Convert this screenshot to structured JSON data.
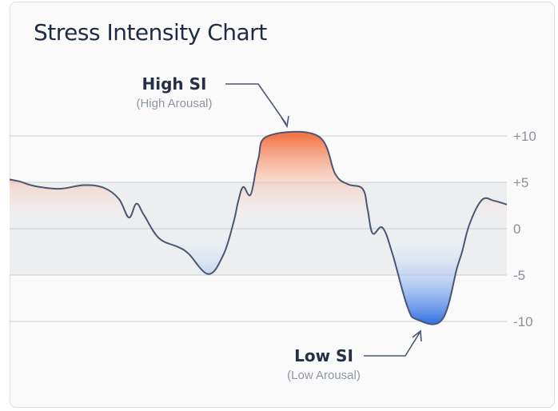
{
  "chart_data": {
    "type": "line",
    "title": "Stress Intensity Chart",
    "xlabel": "",
    "ylabel": "",
    "ylim": [
      -10,
      10
    ],
    "yticks": [
      "+10",
      "+5",
      "0",
      "-5",
      "-10"
    ],
    "normal_band": [
      -5,
      5
    ],
    "grid": true,
    "series": [
      {
        "values": [
          [
            0,
            5.3
          ],
          [
            0.02,
            5.1
          ],
          [
            0.05,
            4.6
          ],
          [
            0.1,
            4.3
          ],
          [
            0.15,
            4.7
          ],
          [
            0.19,
            4.4
          ],
          [
            0.22,
            3.2
          ],
          [
            0.24,
            1.2
          ],
          [
            0.255,
            2.7
          ],
          [
            0.27,
            1.5
          ],
          [
            0.3,
            -1.0
          ],
          [
            0.34,
            -2.0
          ],
          [
            0.36,
            -2.7
          ],
          [
            0.4,
            -4.9
          ],
          [
            0.43,
            -2.8
          ],
          [
            0.45,
            0.6
          ],
          [
            0.46,
            3.0
          ],
          [
            0.47,
            4.5
          ],
          [
            0.485,
            3.7
          ],
          [
            0.5,
            7.5
          ],
          [
            0.52,
            10.0
          ],
          [
            0.62,
            10.0
          ],
          [
            0.655,
            5.9
          ],
          [
            0.68,
            4.8
          ],
          [
            0.71,
            4.3
          ],
          [
            0.72,
            2.1
          ],
          [
            0.73,
            -0.5
          ],
          [
            0.75,
            0.1
          ],
          [
            0.77,
            -2.7
          ],
          [
            0.8,
            -8.4
          ],
          [
            0.82,
            -9.8
          ],
          [
            0.87,
            -9.8
          ],
          [
            0.9,
            -4.2
          ],
          [
            0.91,
            -2.5
          ],
          [
            0.925,
            0.5
          ],
          [
            0.95,
            3.1
          ],
          [
            0.975,
            3.0
          ],
          [
            1,
            2.6
          ]
        ]
      }
    ],
    "annotations": [
      {
        "label": "High SI",
        "sublabel": "(High Arousal)"
      },
      {
        "label": "Low SI",
        "sublabel": "(Low Arousal)"
      }
    ],
    "colors": {
      "high": "#f2784b",
      "low": "#3b78e3",
      "line": "#4b5670",
      "band": "#eceef0",
      "grid": "#c9cdd2",
      "axis_text": "#8b9099"
    }
  }
}
